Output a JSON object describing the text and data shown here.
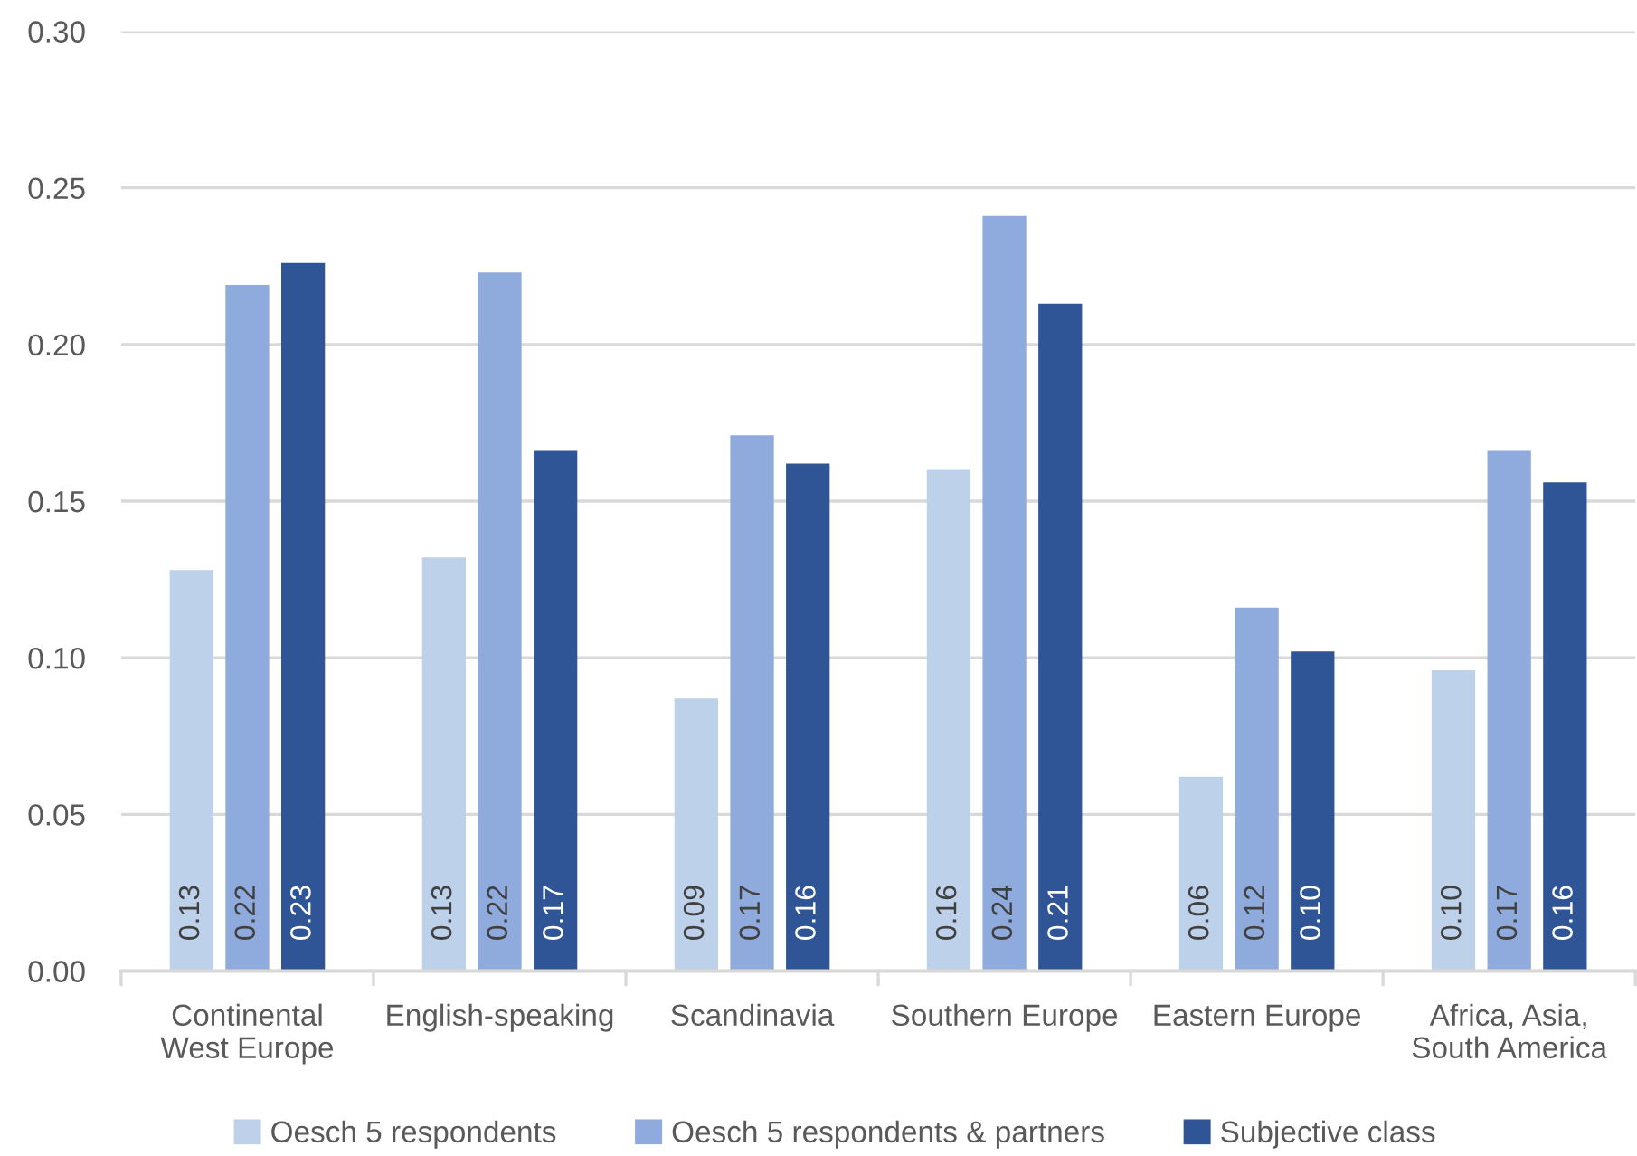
{
  "chart_data": {
    "type": "bar",
    "categories": [
      "Continental\nWest Europe",
      "English-speaking",
      "Scandinavia",
      "Southern Europe",
      "Eastern Europe",
      "Africa, Asia,\nSouth America"
    ],
    "series": [
      {
        "name": "Oesch 5 respondents",
        "color": "#bdd1ea",
        "values": [
          0.128,
          0.132,
          0.087,
          0.16,
          0.062,
          0.096
        ],
        "value_labels": [
          "0.13",
          "0.13",
          "0.09",
          "0.16",
          "0.06",
          "0.10"
        ]
      },
      {
        "name": "Oesch 5 respondents & partners",
        "color": "#8faadc",
        "values": [
          0.219,
          0.223,
          0.171,
          0.241,
          0.116,
          0.166
        ],
        "value_labels": [
          "0.22",
          "0.22",
          "0.17",
          "0.24",
          "0.12",
          "0.17"
        ]
      },
      {
        "name": "Subjective class",
        "color": "#2f5597",
        "values": [
          0.226,
          0.166,
          0.162,
          0.213,
          0.102,
          0.156
        ],
        "value_labels": [
          "0.23",
          "0.17",
          "0.16",
          "0.21",
          "0.10",
          "0.16"
        ]
      }
    ],
    "ylim": [
      0,
      0.3
    ],
    "yticks": [
      {
        "value": 0,
        "label": "0.00"
      },
      0.05,
      {
        "value": 0.1,
        "label": "0.10"
      },
      0.15,
      {
        "value": 0.2,
        "label": "0.20"
      },
      0.25,
      {
        "value": 0.3,
        "label": "0.30"
      }
    ],
    "grid": "y",
    "legend": "bottom"
  }
}
